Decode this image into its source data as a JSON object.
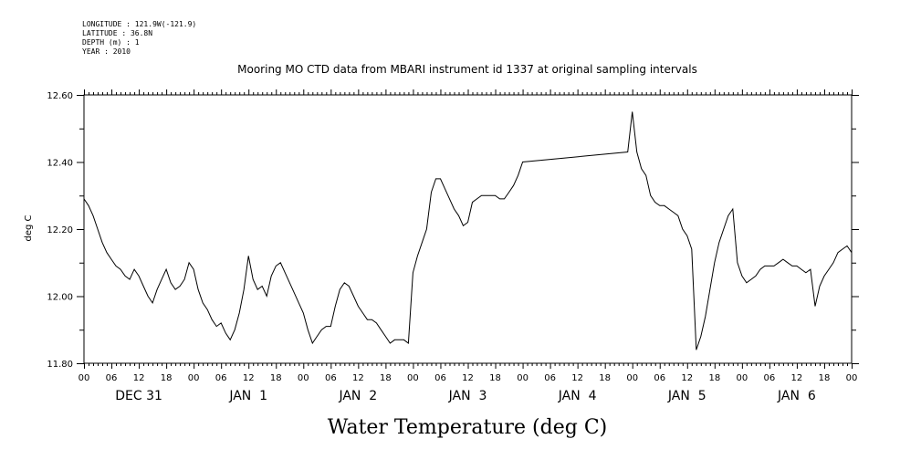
{
  "header": {
    "lines": [
      "LONGITUDE : 121.9W(-121.9)",
      "LATITUDE : 36.8N",
      "DEPTH (m) : 1",
      "YEAR : 2010"
    ]
  },
  "chart_data": {
    "type": "line",
    "title": "Mooring MO CTD data from MBARI instrument id 1337 at original sampling intervals",
    "xlabel": "Water Temperature (deg C)",
    "ylabel": "deg C",
    "ylim": [
      11.8,
      12.6
    ],
    "yticks": [
      "11.80",
      "12.00",
      "12.20",
      "12.40",
      "12.60"
    ],
    "xlim_hours": [
      0,
      168
    ],
    "hour_tick_labels": [
      "00",
      "06",
      "12",
      "18",
      "00",
      "06",
      "12",
      "18",
      "00",
      "06",
      "12",
      "18",
      "00",
      "06",
      "12",
      "18",
      "00",
      "06",
      "12",
      "18",
      "00",
      "06",
      "12",
      "18",
      "00",
      "06",
      "12",
      "18",
      "00"
    ],
    "day_labels": [
      "DEC 31",
      "JAN  1",
      "JAN  2",
      "JAN  3",
      "JAN  4",
      "JAN  5",
      "JAN  6"
    ],
    "grid": false,
    "series": [
      {
        "x": [
          0,
          1,
          2,
          3,
          4,
          5,
          6,
          7,
          8,
          9,
          10,
          11,
          12,
          13,
          14,
          15,
          16,
          17,
          18,
          19,
          20,
          21,
          22,
          23,
          24,
          25,
          26,
          27,
          28,
          29,
          30,
          31,
          32,
          33,
          34,
          35,
          36,
          37,
          38,
          39,
          40,
          41,
          42,
          43,
          44,
          45,
          46,
          47,
          48,
          49,
          50,
          51,
          52,
          53,
          54,
          55,
          56,
          57,
          58,
          59,
          60,
          61,
          62,
          63,
          64,
          65,
          66,
          67,
          68,
          69,
          70,
          71,
          72,
          73,
          74,
          75,
          76,
          77,
          78,
          79,
          80,
          81,
          82,
          83,
          84,
          85,
          86,
          87,
          88,
          89,
          90,
          91,
          92,
          93,
          94,
          95,
          96,
          119,
          120,
          121,
          122,
          123,
          124,
          125,
          126,
          127,
          128,
          129,
          130,
          131,
          132,
          133,
          134,
          135,
          136,
          137,
          138,
          139,
          140,
          141,
          142,
          143,
          144,
          145,
          146,
          147,
          148,
          149,
          150,
          151,
          152,
          153,
          154,
          155,
          156,
          157,
          158,
          159,
          160,
          161,
          162,
          163,
          164,
          165,
          166,
          167,
          168
        ],
        "values": [
          12.29,
          12.27,
          12.24,
          12.2,
          12.16,
          12.13,
          12.11,
          12.09,
          12.08,
          12.06,
          12.05,
          12.08,
          12.06,
          12.03,
          12.0,
          11.98,
          12.02,
          12.05,
          12.08,
          12.04,
          12.02,
          12.03,
          12.05,
          12.1,
          12.08,
          12.02,
          11.98,
          11.96,
          11.93,
          11.91,
          11.92,
          11.89,
          11.87,
          11.9,
          11.95,
          12.02,
          12.12,
          12.05,
          12.02,
          12.03,
          12.0,
          12.06,
          12.09,
          12.1,
          12.07,
          12.04,
          12.01,
          11.98,
          11.95,
          11.9,
          11.86,
          11.88,
          11.9,
          11.91,
          11.91,
          11.97,
          12.02,
          12.04,
          12.03,
          12.0,
          11.97,
          11.95,
          11.93,
          11.93,
          11.92,
          11.9,
          11.88,
          11.86,
          11.87,
          11.87,
          11.87,
          11.86,
          12.07,
          12.12,
          12.16,
          12.2,
          12.31,
          12.35,
          12.35,
          12.32,
          12.29,
          12.26,
          12.24,
          12.21,
          12.22,
          12.28,
          12.29,
          12.3,
          12.3,
          12.3,
          12.3,
          12.29,
          12.29,
          12.31,
          12.33,
          12.36,
          12.4,
          12.43,
          12.55,
          12.43,
          12.38,
          12.36,
          12.3,
          12.28,
          12.27,
          12.27,
          12.26,
          12.25,
          12.24,
          12.2,
          12.18,
          12.14,
          11.84,
          11.88,
          11.94,
          12.02,
          12.1,
          12.16,
          12.2,
          12.24,
          12.26,
          12.1,
          12.06,
          12.04,
          12.05,
          12.06,
          12.08,
          12.09,
          12.09,
          12.09,
          12.1,
          12.11,
          12.1,
          12.09,
          12.09,
          12.08,
          12.07,
          12.08,
          11.97,
          12.03,
          12.06,
          12.08,
          12.1,
          12.13,
          12.14,
          12.15,
          12.13
        ]
      }
    ]
  }
}
